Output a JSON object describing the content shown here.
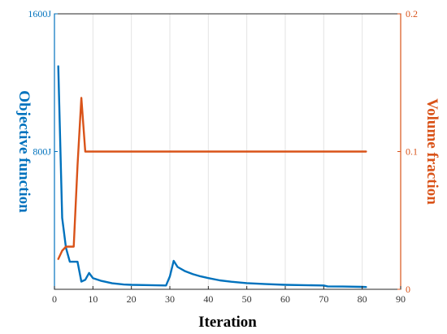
{
  "chart_data": {
    "type": "line",
    "xlabel": "Iteration",
    "ylabel_left": "Objective function",
    "ylabel_right": "Volume fraction",
    "xlim": [
      0,
      90
    ],
    "x_ticks": [
      0,
      10,
      20,
      30,
      40,
      50,
      60,
      70,
      80,
      90
    ],
    "ylim_left": [
      0,
      1600
    ],
    "y_left_ticks": [
      {
        "value": 800,
        "label": "800J"
      },
      {
        "value": 1600,
        "label": "1600J"
      }
    ],
    "ylim_right": [
      0,
      0.2
    ],
    "y_right_ticks": [
      {
        "value": 0,
        "label": "0"
      },
      {
        "value": 0.1,
        "label": "0.1"
      },
      {
        "value": 0.2,
        "label": "0.2"
      }
    ],
    "grid": "vertical",
    "colors": {
      "left_axis": "#0072BD",
      "right_axis": "#D95319",
      "grid": "#e3e3e3"
    },
    "series": [
      {
        "axis": "left",
        "color": "#0072BD",
        "x": [
          1,
          2,
          3,
          4,
          5,
          6,
          7,
          8,
          9,
          10,
          12,
          15,
          18,
          20,
          25,
          29,
          30,
          31,
          32,
          34,
          36,
          38,
          40,
          43,
          46,
          50,
          55,
          60,
          65,
          70,
          71,
          75,
          80,
          81
        ],
        "y": [
          1295,
          415,
          240,
          160,
          160,
          160,
          45,
          55,
          95,
          65,
          50,
          35,
          28,
          26,
          24,
          22,
          75,
          165,
          130,
          105,
          88,
          75,
          65,
          52,
          44,
          36,
          30,
          26,
          24,
          22,
          17,
          16,
          14,
          13
        ]
      },
      {
        "axis": "right",
        "color": "#D95319",
        "x": [
          1,
          2,
          3,
          4,
          5,
          6,
          7,
          8,
          81
        ],
        "y": [
          0.022,
          0.028,
          0.031,
          0.031,
          0.031,
          0.09,
          0.139,
          0.1,
          0.1
        ]
      }
    ]
  }
}
